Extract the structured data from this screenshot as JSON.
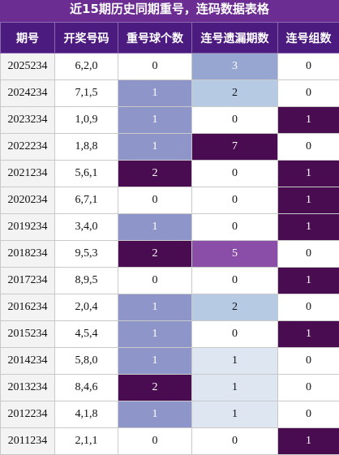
{
  "header": {
    "title": "近15期历史同期重号，连码数据表格"
  },
  "table": {
    "columns": [
      "期号",
      "开奖号码",
      "重号球个数",
      "连号遗漏期数",
      "连号组数"
    ],
    "rows": [
      [
        "2025234",
        "6,2,0",
        0,
        3,
        0
      ],
      [
        "2024234",
        "7,1,5",
        1,
        2,
        0
      ],
      [
        "2023234",
        "1,0,9",
        1,
        0,
        1
      ],
      [
        "2022234",
        "1,8,8",
        1,
        7,
        0
      ],
      [
        "2021234",
        "5,6,1",
        2,
        0,
        1
      ],
      [
        "2020234",
        "6,7,1",
        0,
        0,
        1
      ],
      [
        "2019234",
        "3,4,0",
        1,
        0,
        1
      ],
      [
        "2018234",
        "9,5,3",
        2,
        5,
        0
      ],
      [
        "2017234",
        "8,9,5",
        0,
        0,
        1
      ],
      [
        "2016234",
        "2,0,4",
        1,
        2,
        0
      ],
      [
        "2015234",
        "4,5,4",
        1,
        0,
        1
      ],
      [
        "2014234",
        "5,8,0",
        1,
        1,
        0
      ],
      [
        "2013234",
        "8,4,6",
        2,
        1,
        0
      ],
      [
        "2012234",
        "4,1,8",
        1,
        1,
        0
      ],
      [
        "2011234",
        "2,1,1",
        0,
        0,
        1
      ]
    ]
  }
}
